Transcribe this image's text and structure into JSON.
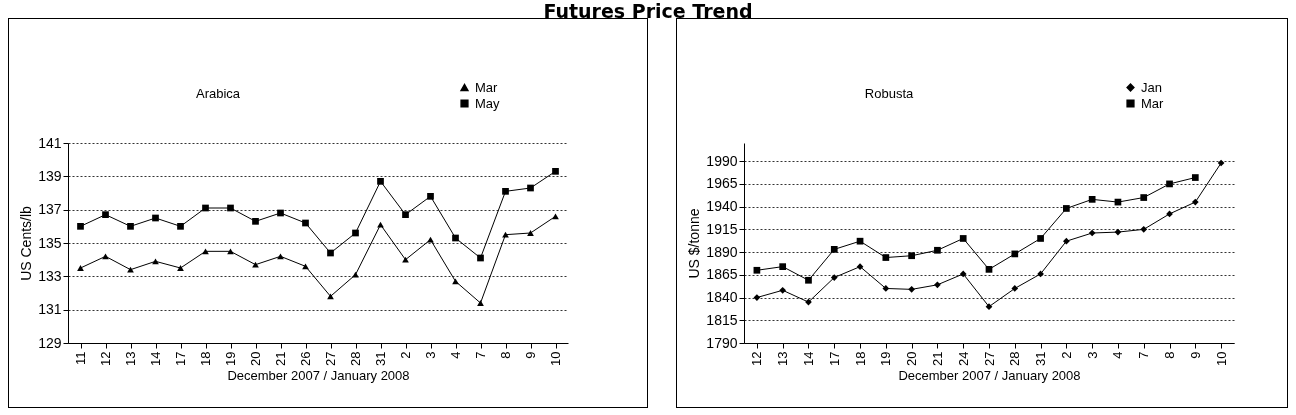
{
  "chart_data": [
    {
      "type": "line",
      "title": "Arabica",
      "annotations": [
        "Futures Price Trend"
      ],
      "xlabel": "December 2007 / January 2008",
      "ylabel": "US Cents/lb",
      "categories": [
        "11",
        "12",
        "13",
        "14",
        "17",
        "18",
        "19",
        "20",
        "21",
        "26",
        "27",
        "28",
        "31",
        "2",
        "3",
        "4",
        "7",
        "8",
        "9",
        "10"
      ],
      "series": [
        {
          "name": "Mar",
          "color": "#000000",
          "marker": "triangle",
          "values": [
            133.5,
            134.2,
            133.4,
            133.9,
            133.5,
            134.5,
            134.5,
            133.7,
            134.2,
            133.6,
            131.8,
            133.1,
            136.1,
            134.0,
            135.2,
            132.7,
            131.4,
            135.5,
            135.6,
            136.6
          ]
        },
        {
          "name": "May",
          "color": "#000000",
          "marker": "square",
          "values": [
            136.0,
            136.7,
            136.0,
            136.5,
            136.0,
            137.1,
            137.1,
            136.3,
            136.8,
            136.2,
            134.4,
            135.6,
            138.7,
            136.7,
            137.8,
            135.3,
            134.1,
            138.1,
            138.3,
            139.3
          ]
        }
      ],
      "ylim": [
        129,
        141
      ],
      "yticks": [
        129,
        131,
        133,
        135,
        137,
        139,
        141
      ],
      "grid": "y",
      "legend": "top right"
    },
    {
      "type": "line",
      "title": "Robusta",
      "xlabel": "December 2007 / January 2008",
      "ylabel": "US $/tonne",
      "categories": [
        "12",
        "13",
        "14",
        "17",
        "18",
        "19",
        "20",
        "21",
        "24",
        "27",
        "28",
        "31",
        "2",
        "3",
        "4",
        "7",
        "8",
        "9",
        "10"
      ],
      "series": [
        {
          "name": "Jan",
          "color": "#000000",
          "marker": "diamond",
          "values": [
            1840,
            1848,
            1835,
            1862,
            1874,
            1850,
            1849,
            1854,
            1866,
            1830,
            1850,
            1866,
            1902,
            1911,
            1912,
            1915,
            1932,
            1945,
            1988
          ]
        },
        {
          "name": "Mar",
          "color": "#000000",
          "marker": "square",
          "values": [
            1870,
            1874,
            1859,
            1893,
            1902,
            1884,
            1886,
            1892,
            1905,
            1871,
            1888,
            1905,
            1938,
            1948,
            1945,
            1950,
            1965,
            1972,
            null
          ]
        }
      ],
      "ylim": [
        1790,
        2010
      ],
      "yticks": [
        1790,
        1815,
        1840,
        1865,
        1890,
        1915,
        1940,
        1965,
        1990
      ],
      "grid": "y",
      "legend": "top right"
    }
  ]
}
